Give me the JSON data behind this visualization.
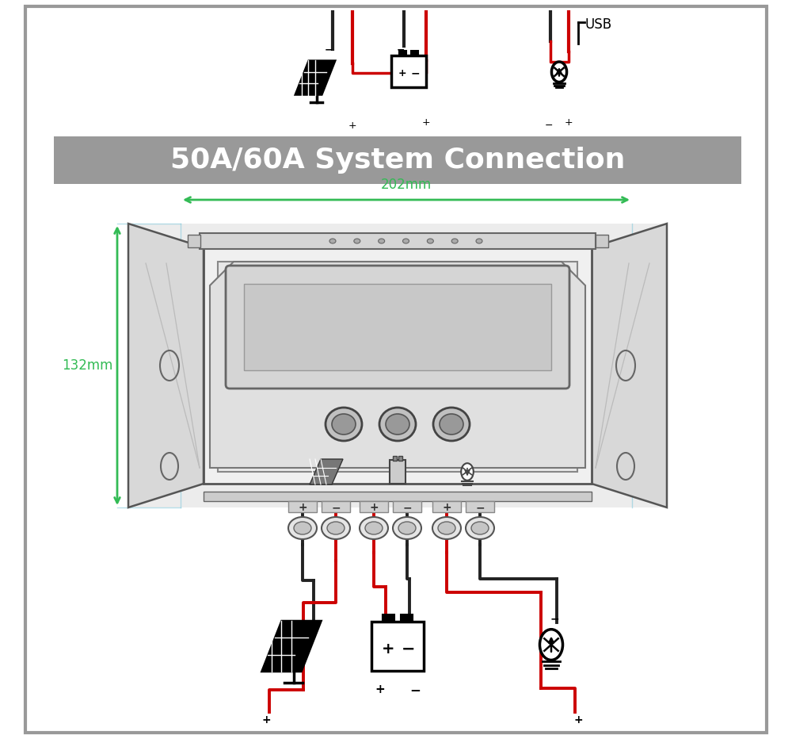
{
  "bg_color": "#ffffff",
  "page_border_color": "#999999",
  "title_bg": "#999999",
  "title_text": "50A/60A System Connection",
  "title_color": "#ffffff",
  "dim_color": "#33bb55",
  "line_black": "#222222",
  "line_red": "#cc0000",
  "dim_202": "202mm",
  "dim_132": "132mm",
  "title_fontsize": 26,
  "dim_fontsize": 12
}
